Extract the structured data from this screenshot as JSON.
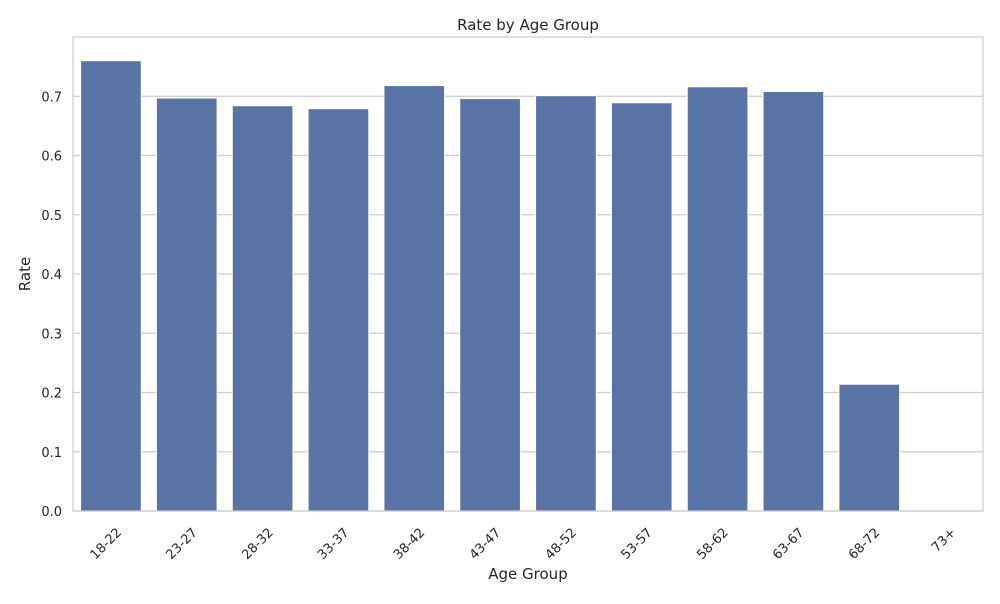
{
  "chart_data": {
    "type": "bar",
    "title": "Rate by Age Group",
    "xlabel": "Age Group",
    "ylabel": "Rate",
    "categories": [
      "18-22",
      "23-27",
      "28-32",
      "33-37",
      "38-42",
      "43-47",
      "48-52",
      "53-57",
      "58-62",
      "63-67",
      "68-72",
      "73+"
    ],
    "values": [
      0.76,
      0.697,
      0.684,
      0.679,
      0.718,
      0.696,
      0.701,
      0.689,
      0.716,
      0.708,
      0.214,
      0.0
    ],
    "ylim": [
      0,
      0.8
    ],
    "yticks": [
      0.0,
      0.1,
      0.2,
      0.3,
      0.4,
      0.5,
      0.6,
      0.7
    ],
    "ytick_labels": [
      "0.0",
      "0.1",
      "0.2",
      "0.3",
      "0.4",
      "0.5",
      "0.6",
      "0.7"
    ],
    "grid": "horizontal",
    "colors": {
      "bar": "#5874a6",
      "bar_edge": "#ffffff",
      "grid": "#cccccc",
      "frame": "#cccccc",
      "text": "#262626"
    }
  }
}
